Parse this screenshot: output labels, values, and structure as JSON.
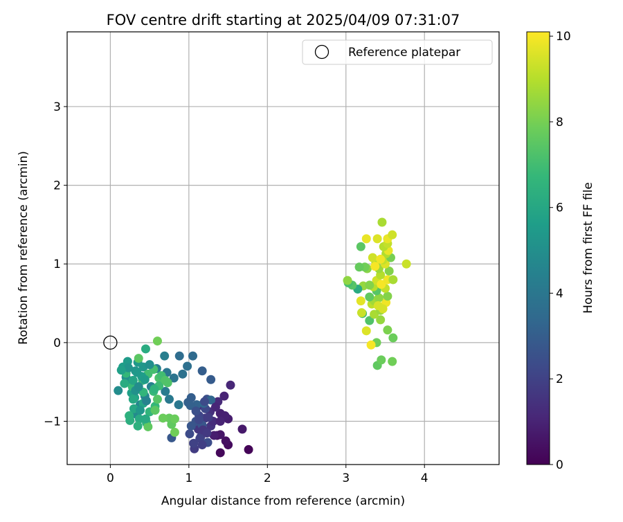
{
  "chart_data": {
    "type": "scatter",
    "title": "FOV centre drift starting at 2025/04/09 07:31:07",
    "xlabel": "Angular distance from reference (arcmin)",
    "ylabel": "Rotation from reference (arcmin)",
    "xlim": [
      -0.55,
      4.95
    ],
    "ylim": [
      -1.55,
      3.95
    ],
    "xticks": [
      0,
      1,
      2,
      3,
      4
    ],
    "yticks": [
      -1,
      0,
      1,
      2,
      3
    ],
    "grid": true,
    "legend": {
      "position": "upper right",
      "entries": [
        "Reference platepar"
      ]
    },
    "reference_point": {
      "x": 0,
      "y": 0,
      "label": "Reference platepar"
    },
    "colorbar": {
      "label": "Hours from first FF file",
      "colormap": "viridis",
      "range": [
        0,
        10.1
      ],
      "ticks": [
        0,
        2,
        4,
        6,
        8,
        10
      ]
    },
    "series": [
      {
        "points": [
          [
            1.76,
            -1.36,
            0.1
          ],
          [
            1.4,
            -1.4,
            0.2
          ],
          [
            1.5,
            -1.3,
            0.3
          ],
          [
            1.47,
            -1.25,
            0.4
          ],
          [
            1.36,
            -1.18,
            0.5
          ],
          [
            1.4,
            -1.17,
            0.6
          ],
          [
            1.68,
            -1.1,
            0.7
          ],
          [
            1.5,
            -0.97,
            0.8
          ],
          [
            1.4,
            -0.9,
            0.9
          ],
          [
            1.45,
            -0.68,
            1.0
          ],
          [
            1.53,
            -0.54,
            1.1
          ],
          [
            1.37,
            -0.75,
            1.2
          ],
          [
            1.17,
            -0.8,
            1.3
          ],
          [
            1.27,
            -0.88,
            1.4
          ],
          [
            1.28,
            -1.06,
            1.5
          ],
          [
            1.12,
            -1.1,
            1.6
          ],
          [
            1.21,
            -0.96,
            1.7
          ],
          [
            1.07,
            -1.35,
            1.8
          ],
          [
            1.15,
            -1.2,
            1.9
          ],
          [
            1.06,
            -1.28,
            2.0
          ],
          [
            1.13,
            -0.93,
            2.1
          ],
          [
            1.21,
            -0.84,
            2.2
          ],
          [
            1.01,
            -1.16,
            2.3
          ],
          [
            1.24,
            -1.27,
            2.4
          ],
          [
            1.23,
            -0.72,
            2.5
          ],
          [
            1.09,
            -1.0,
            2.6
          ],
          [
            1.17,
            -1.05,
            2.7
          ],
          [
            0.78,
            -1.21,
            2.8
          ],
          [
            1.28,
            -0.47,
            2.9
          ],
          [
            1.17,
            -0.36,
            3.0
          ],
          [
            0.99,
            -0.76,
            3.1
          ],
          [
            1.1,
            -0.79,
            3.2
          ],
          [
            1.28,
            -0.73,
            3.3
          ],
          [
            1.19,
            -0.77,
            3.4
          ],
          [
            1.05,
            -0.17,
            3.5
          ],
          [
            0.88,
            -0.17,
            3.6
          ],
          [
            0.98,
            -0.3,
            3.7
          ],
          [
            0.92,
            -0.4,
            3.8
          ],
          [
            0.81,
            -0.45,
            3.9
          ],
          [
            0.72,
            -0.38,
            4.0
          ],
          [
            0.87,
            -0.79,
            4.0
          ],
          [
            0.75,
            -0.72,
            4.1
          ],
          [
            0.7,
            -0.62,
            4.2
          ],
          [
            0.69,
            -0.17,
            4.3
          ],
          [
            0.59,
            -0.33,
            4.4
          ],
          [
            0.52,
            -0.56,
            4.5
          ],
          [
            0.44,
            -0.68,
            4.6
          ],
          [
            0.38,
            -0.79,
            4.7
          ],
          [
            0.33,
            -0.91,
            4.8
          ],
          [
            0.1,
            -0.61,
            4.9
          ],
          [
            0.2,
            -0.44,
            5.0
          ],
          [
            0.26,
            -0.5,
            5.1
          ],
          [
            0.32,
            -0.36,
            5.2
          ],
          [
            0.42,
            -0.31,
            5.3
          ],
          [
            0.35,
            -0.25,
            5.4
          ],
          [
            0.22,
            -0.24,
            5.5
          ],
          [
            0.16,
            -0.31,
            5.6
          ],
          [
            0.27,
            -0.64,
            5.7
          ],
          [
            0.31,
            -0.7,
            5.8
          ],
          [
            0.42,
            -0.77,
            5.9
          ],
          [
            0.3,
            -0.84,
            6.0
          ],
          [
            0.37,
            -0.97,
            6.1
          ],
          [
            0.45,
            -0.08,
            6.2
          ],
          [
            0.25,
            -0.99,
            6.3
          ],
          [
            0.35,
            -1.06,
            6.4
          ],
          [
            0.46,
            -1.02,
            6.5
          ],
          [
            0.5,
            -0.88,
            6.6
          ],
          [
            0.57,
            -0.81,
            6.7
          ],
          [
            0.28,
            -0.56,
            6.8
          ],
          [
            0.41,
            -0.48,
            6.9
          ],
          [
            0.48,
            -0.4,
            7.0
          ],
          [
            0.55,
            -0.34,
            7.1
          ],
          [
            0.62,
            -0.45,
            7.2
          ],
          [
            0.73,
            -0.51,
            7.3
          ],
          [
            0.6,
            -0.72,
            7.4
          ],
          [
            0.36,
            -0.2,
            7.5
          ],
          [
            0.48,
            -1.07,
            7.6
          ],
          [
            0.75,
            -0.96,
            7.7
          ],
          [
            0.67,
            -0.96,
            7.8
          ],
          [
            0.82,
            -1.14,
            7.9
          ],
          [
            0.6,
            0.02,
            7.9
          ],
          [
            0.2,
            -0.39,
            6.7
          ],
          [
            0.62,
            -0.55,
            6.9
          ],
          [
            0.24,
            -0.93,
            6.4
          ],
          [
            0.78,
            -1.04,
            7.6
          ],
          [
            0.82,
            -0.97,
            7.8
          ],
          [
            0.57,
            -0.86,
            7.5
          ],
          [
            0.23,
            -0.32,
            5.2
          ],
          [
            0.4,
            -0.43,
            5.6
          ],
          [
            0.34,
            -0.38,
            5.4
          ],
          [
            0.29,
            -0.48,
            5.9
          ],
          [
            0.45,
            -0.97,
            6.1
          ],
          [
            0.5,
            -0.28,
            5.0
          ],
          [
            0.18,
            -0.52,
            6.2
          ],
          [
            0.55,
            -0.62,
            6.8
          ],
          [
            0.65,
            -0.42,
            7.0
          ],
          [
            0.7,
            -0.48,
            7.3
          ],
          [
            0.42,
            -0.63,
            6.6
          ],
          [
            1.03,
            -0.7,
            3.0
          ],
          [
            1.18,
            -1.11,
            1.6
          ],
          [
            1.31,
            -1.0,
            1.3
          ],
          [
            1.25,
            -0.95,
            1.8
          ],
          [
            1.14,
            -1.22,
            2.0
          ],
          [
            1.32,
            -1.18,
            0.8
          ],
          [
            1.46,
            -0.93,
            0.9
          ],
          [
            1.02,
            -0.8,
            3.1
          ],
          [
            1.2,
            -0.75,
            2.3
          ],
          [
            1.34,
            -0.82,
            1.1
          ],
          [
            1.09,
            -0.87,
            2.5
          ],
          [
            1.17,
            -1.3,
            1.9
          ],
          [
            1.4,
            -1.0,
            1.0
          ],
          [
            1.03,
            -1.06,
            2.7
          ],
          [
            1.13,
            -0.98,
            2.2
          ],
          [
            1.23,
            -1.15,
            1.7
          ],
          [
            0.32,
            -0.61,
            5.1
          ],
          [
            0.14,
            -0.35,
            5.7
          ],
          [
            0.38,
            -0.86,
            5.3
          ],
          [
            0.44,
            -0.47,
            5.5
          ],
          [
            0.29,
            -0.72,
            6.0
          ],
          [
            0.36,
            -0.56,
            4.9
          ],
          [
            0.46,
            -0.74,
            4.5
          ],
          [
            0.56,
            -0.59,
            6.5
          ],
          [
            3.4,
            -0.29,
            7.6
          ],
          [
            3.45,
            -0.22,
            7.8
          ],
          [
            3.59,
            -0.24,
            7.9
          ],
          [
            3.39,
            0.0,
            7.9
          ],
          [
            3.32,
            -0.03,
            10.0
          ],
          [
            3.6,
            0.06,
            7.8
          ],
          [
            3.53,
            0.16,
            8.1
          ],
          [
            3.3,
            0.28,
            7.3
          ],
          [
            3.21,
            0.37,
            7.0
          ],
          [
            3.44,
            0.29,
            8.5
          ],
          [
            3.36,
            0.36,
            8.8
          ],
          [
            3.2,
            0.38,
            9.3
          ],
          [
            3.26,
            0.15,
            9.6
          ],
          [
            3.44,
            0.41,
            8.6
          ],
          [
            3.33,
            0.49,
            9.1
          ],
          [
            3.51,
            0.51,
            9.9
          ],
          [
            3.47,
            0.43,
            9.5
          ],
          [
            3.19,
            0.53,
            9.7
          ],
          [
            3.36,
            0.53,
            8.7
          ],
          [
            3.42,
            0.57,
            8.4
          ],
          [
            3.53,
            0.59,
            8.2
          ],
          [
            3.3,
            0.58,
            7.6
          ],
          [
            3.39,
            0.66,
            7.4
          ],
          [
            3.5,
            0.69,
            9.2
          ],
          [
            3.35,
            0.71,
            9.0
          ],
          [
            3.22,
            0.72,
            8.5
          ],
          [
            3.15,
            0.68,
            6.2
          ],
          [
            3.08,
            0.73,
            7.4
          ],
          [
            3.03,
            0.76,
            7.1
          ],
          [
            3.02,
            0.79,
            8.4
          ],
          [
            3.39,
            0.79,
            9.4
          ],
          [
            3.45,
            0.74,
            10.0
          ],
          [
            3.53,
            0.8,
            9.9
          ],
          [
            3.6,
            0.8,
            8.8
          ],
          [
            3.44,
            0.86,
            9.0
          ],
          [
            3.55,
            0.91,
            8.2
          ],
          [
            3.42,
            0.94,
            8.6
          ],
          [
            3.27,
            0.94,
            8.3
          ],
          [
            3.24,
            0.96,
            7.9
          ],
          [
            3.17,
            0.96,
            7.7
          ],
          [
            3.5,
            1.0,
            9.6
          ],
          [
            3.77,
            1.0,
            9.3
          ],
          [
            3.38,
            1.02,
            8.7
          ],
          [
            3.47,
            1.05,
            9.2
          ],
          [
            3.34,
            1.08,
            9.4
          ],
          [
            3.57,
            1.08,
            8.0
          ],
          [
            3.51,
            1.13,
            8.9
          ],
          [
            3.54,
            1.17,
            9.8
          ],
          [
            3.19,
            1.22,
            7.5
          ],
          [
            3.48,
            1.22,
            9.0
          ],
          [
            3.53,
            1.26,
            9.2
          ],
          [
            3.53,
            1.32,
            9.8
          ],
          [
            3.4,
            1.32,
            9.6
          ],
          [
            3.26,
            1.32,
            9.8
          ],
          [
            3.59,
            1.37,
            9.4
          ],
          [
            3.46,
            1.53,
            8.8
          ],
          [
            3.3,
            0.73,
            8.2
          ],
          [
            3.41,
            0.47,
            9.5
          ],
          [
            3.37,
            0.97,
            10.0
          ],
          [
            3.44,
            1.06,
            9.9
          ]
        ]
      }
    ]
  }
}
